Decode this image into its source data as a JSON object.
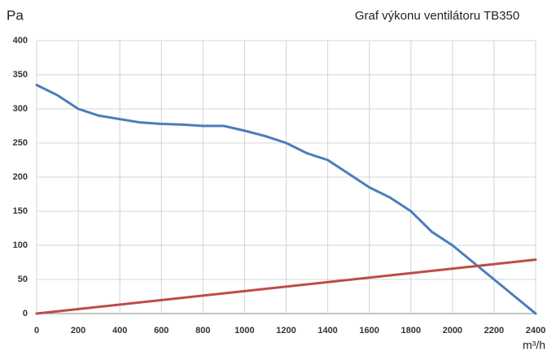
{
  "chart_data": {
    "type": "line",
    "title": "Graf výkonu ventilátoru TB350",
    "y_label": "Pa",
    "x_label": "m³/h",
    "series": [
      {
        "color": "#4a7ebb",
        "x": [
          0,
          100,
          200,
          300,
          400,
          500,
          600,
          700,
          800,
          900,
          1000,
          1100,
          1200,
          1300,
          1400,
          1500,
          1600,
          1700,
          1800,
          1900,
          2000,
          2100,
          2200,
          2300,
          2400
        ],
        "values": [
          335,
          320,
          300,
          290,
          285,
          280,
          278,
          277,
          275,
          275,
          268,
          260,
          250,
          235,
          225,
          205,
          185,
          170,
          150,
          120,
          100,
          75,
          50,
          25,
          0
        ]
      },
      {
        "color": "#be4b48",
        "x": [
          0,
          2400
        ],
        "values": [
          0,
          79
        ]
      }
    ],
    "xlim": [
      0,
      2400
    ],
    "xticks": [
      0,
      200,
      400,
      600,
      800,
      1000,
      1200,
      1400,
      1600,
      1800,
      2000,
      2200,
      2400
    ],
    "ylim": [
      0,
      400
    ],
    "yticks": [
      0,
      50,
      100,
      150,
      200,
      250,
      300,
      350,
      400
    ],
    "grid": true
  }
}
